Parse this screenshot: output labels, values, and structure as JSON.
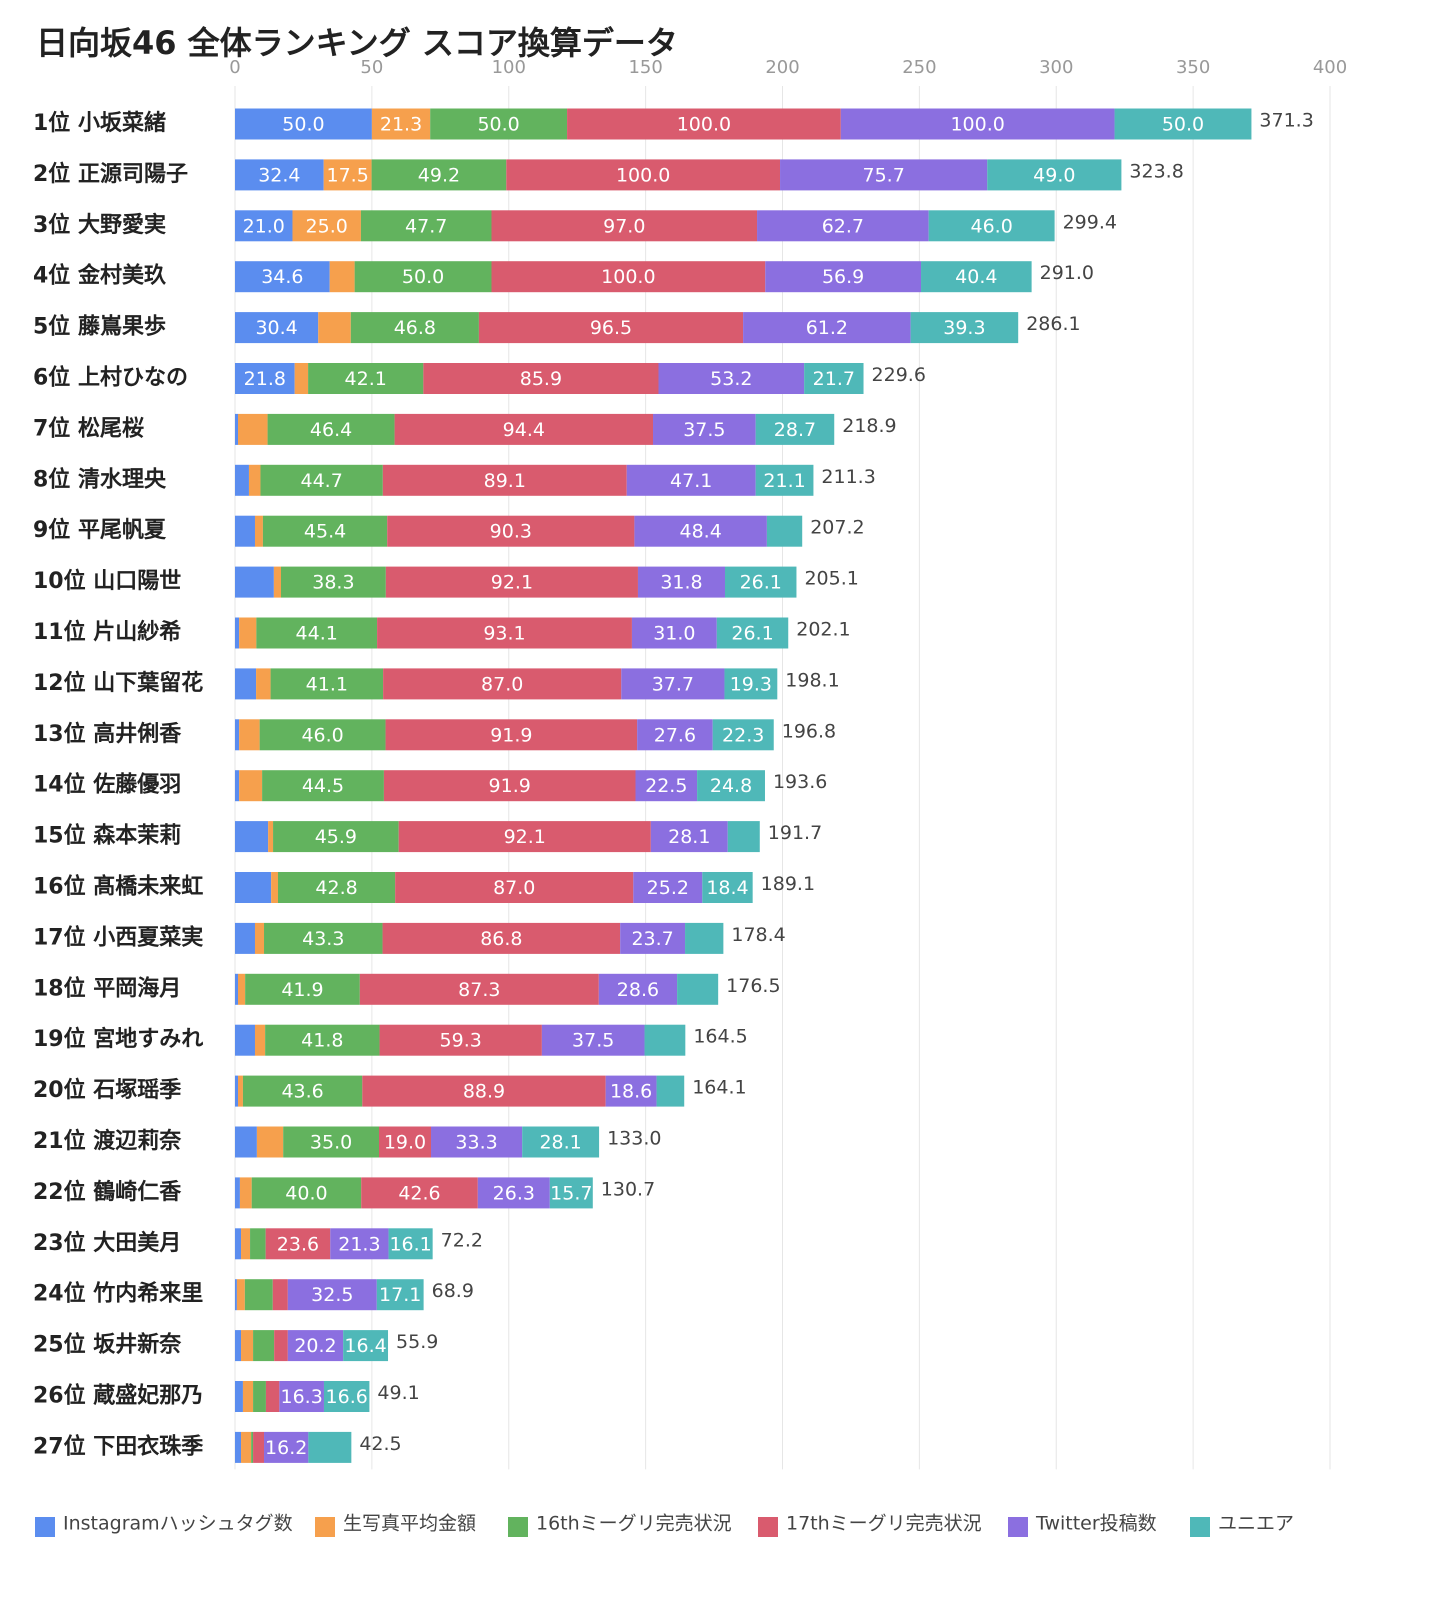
{
  "chart_data": {
    "type": "stacked_barh",
    "title": "日向坂46 全体ランキング スコア換算データ",
    "categories": [
      "1位 小坂菜緒",
      "2位 正源司陽子",
      "3位 大野愛実",
      "4位 金村美玖",
      "5位 藤嶌果歩",
      "6位 上村ひなの",
      "7位 松尾桜",
      "8位 清水理央",
      "9位 平尾帆夏",
      "10位 山口陽世",
      "11位 片山紗希",
      "12位 山下葉留花",
      "13位 高井俐香",
      "14位 佐藤優羽",
      "15位 森本茉莉",
      "16位 髙橋未来虹",
      "17位 小西夏菜実",
      "18位 平岡海月",
      "19位 宮地すみれ",
      "20位 石塚瑶季",
      "21位 渡辺莉奈",
      "22位 鶴崎仁香",
      "23位 大田美月",
      "24位 竹内希来里",
      "25位 坂井新奈",
      "26位 蔵盛妃那乃",
      "27位 下田衣珠季"
    ],
    "series": [
      {
        "name": "Instagramハッシュタグ数",
        "color": "#5b8def",
        "values": [
          50.0,
          32.4,
          21.0,
          34.6,
          30.4,
          21.8,
          1.1,
          5.1,
          7.3,
          14.2,
          1.5,
          7.7,
          1.5,
          1.5,
          12.1,
          13.2,
          7.3,
          1.1,
          7.3,
          1.1,
          8.0,
          1.8,
          2.2,
          0.7,
          2.2,
          2.9,
          2.2
        ],
        "value_labels": [
          "50.0",
          "32.4",
          "21.0",
          "34.6",
          "30.4",
          "21.8",
          null,
          null,
          null,
          null,
          null,
          null,
          null,
          null,
          null,
          null,
          null,
          null,
          null,
          null,
          null,
          null,
          null,
          null,
          null,
          null,
          null
        ]
      },
      {
        "name": "生写真平均金額",
        "color": "#f6a04d",
        "values": [
          21.3,
          17.5,
          25.0,
          9.1,
          11.9,
          4.9,
          10.8,
          4.2,
          2.9,
          2.6,
          6.3,
          5.3,
          7.5,
          8.4,
          1.8,
          2.5,
          3.3,
          2.6,
          3.7,
          1.8,
          9.6,
          4.3,
          3.3,
          2.9,
          4.4,
          3.7,
          3.7
        ],
        "value_labels": [
          "21.3",
          "17.5",
          "25.0",
          null,
          null,
          null,
          null,
          null,
          null,
          null,
          null,
          null,
          null,
          null,
          null,
          null,
          null,
          null,
          null,
          null,
          null,
          null,
          null,
          null,
          null,
          null,
          null
        ]
      },
      {
        "name": "16thミーグリ完売状況",
        "color": "#62b35e",
        "values": [
          50.0,
          49.2,
          47.7,
          50.0,
          46.8,
          42.1,
          46.4,
          44.7,
          45.4,
          38.3,
          44.1,
          41.1,
          46.0,
          44.5,
          45.9,
          42.8,
          43.3,
          41.9,
          41.8,
          43.6,
          35.0,
          40.0,
          5.7,
          10.2,
          7.7,
          4.7,
          0.7
        ],
        "value_labels": [
          "50.0",
          "49.2",
          "47.7",
          "50.0",
          "46.8",
          "42.1",
          "46.4",
          "44.7",
          "45.4",
          "38.3",
          "44.1",
          "41.1",
          "46.0",
          "44.5",
          "45.9",
          "42.8",
          "43.3",
          "41.9",
          "41.8",
          "43.6",
          "35.0",
          "40.0",
          null,
          null,
          null,
          null,
          null
        ]
      },
      {
        "name": "17thミーグリ完売状況",
        "color": "#d95b6e",
        "values": [
          100.0,
          100.0,
          97.0,
          100.0,
          96.5,
          85.9,
          94.4,
          89.1,
          90.3,
          92.1,
          93.1,
          87.0,
          91.9,
          91.9,
          92.1,
          87.0,
          86.8,
          87.3,
          59.3,
          88.9,
          19.0,
          42.6,
          23.6,
          5.5,
          5.0,
          4.9,
          4.0
        ],
        "value_labels": [
          "100.0",
          "100.0",
          "97.0",
          "100.0",
          "96.5",
          "85.9",
          "94.4",
          "89.1",
          "90.3",
          "92.1",
          "93.1",
          "87.0",
          "91.9",
          "91.9",
          "92.1",
          "87.0",
          "86.8",
          "87.3",
          "59.3",
          "88.9",
          "19.0",
          "42.6",
          "23.6",
          null,
          null,
          null,
          null
        ]
      },
      {
        "name": "Twitter投稿数",
        "color": "#8b6fe0",
        "values": [
          100.0,
          75.7,
          62.7,
          56.9,
          61.2,
          53.2,
          37.5,
          47.1,
          48.4,
          31.8,
          31.0,
          37.7,
          27.6,
          22.5,
          28.1,
          25.2,
          23.7,
          28.6,
          37.5,
          18.6,
          33.3,
          26.3,
          21.3,
          32.5,
          20.2,
          16.3,
          16.2
        ],
        "value_labels": [
          "100.0",
          "75.7",
          "62.7",
          "56.9",
          "61.2",
          "53.2",
          "37.5",
          "47.1",
          "48.4",
          "31.8",
          "31.0",
          "37.7",
          "27.6",
          "22.5",
          "28.1",
          "25.2",
          "23.7",
          "28.6",
          "37.5",
          "18.6",
          "33.3",
          "26.3",
          "21.3",
          "32.5",
          "20.2",
          "16.3",
          "16.2"
        ]
      },
      {
        "name": "ユニエア",
        "color": "#4fb8b8",
        "values": [
          50.0,
          49.0,
          46.0,
          40.4,
          39.3,
          21.7,
          28.7,
          21.1,
          12.9,
          26.1,
          26.1,
          19.3,
          22.3,
          24.8,
          11.7,
          18.4,
          14.0,
          15.0,
          14.9,
          10.1,
          28.1,
          15.7,
          16.1,
          17.1,
          16.4,
          16.6,
          15.7
        ],
        "value_labels": [
          "50.0",
          "49.0",
          "46.0",
          "40.4",
          "39.3",
          "21.7",
          "28.7",
          "21.1",
          null,
          "26.1",
          "26.1",
          "19.3",
          "22.3",
          "24.8",
          null,
          "18.4",
          null,
          null,
          null,
          null,
          "28.1",
          "15.7",
          "16.1",
          "17.1",
          "16.4",
          "16.6",
          null
        ]
      }
    ],
    "totals": {
      "values": [
        371.3,
        323.8,
        299.4,
        291.0,
        286.1,
        229.6,
        218.9,
        211.3,
        207.2,
        205.1,
        202.1,
        198.1,
        196.8,
        193.6,
        191.7,
        189.1,
        178.4,
        176.5,
        164.5,
        164.1,
        133.0,
        130.7,
        72.2,
        68.9,
        55.9,
        49.1,
        42.5
      ],
      "value_labels": [
        "371.3",
        "323.8",
        "299.4",
        "291.0",
        "286.1",
        "229.6",
        "218.9",
        "211.3",
        "207.2",
        "205.1",
        "202.1",
        "198.1",
        "196.8",
        "193.6",
        "191.7",
        "189.1",
        "178.4",
        "176.5",
        "164.5",
        "164.1",
        "133.0",
        "130.7",
        "72.2",
        "68.9",
        "55.9",
        "49.1",
        "42.5"
      ]
    },
    "xlim": [
      0,
      400
    ],
    "xticks": [
      0,
      50,
      100,
      150,
      200,
      250,
      300,
      350,
      400
    ],
    "grid": true,
    "legend": "bottom"
  }
}
